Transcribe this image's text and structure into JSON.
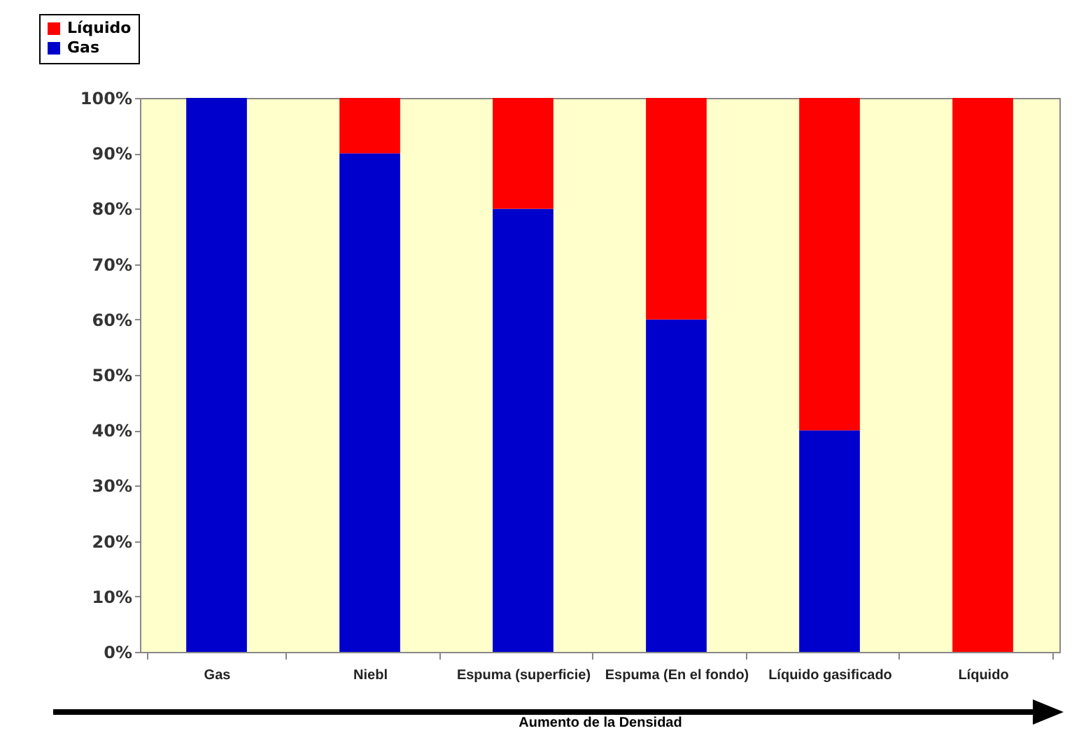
{
  "chart_data": {
    "type": "bar",
    "stacked": true,
    "xlabel": "Aumento de la Densidad",
    "categories": [
      "Gas",
      "Niebl",
      "Espuma (superficie)",
      "Espuma (En el fondo)",
      "Líquido gasificado",
      "Líquido"
    ],
    "series": [
      {
        "name": "Gas",
        "color": "#0000cc",
        "values": [
          100,
          90,
          80,
          60,
          40,
          0
        ]
      },
      {
        "name": "Líquido",
        "color": "#ff0000",
        "values": [
          0,
          10,
          20,
          40,
          60,
          100
        ]
      }
    ],
    "ylim": [
      0,
      100
    ],
    "yticks": [
      {
        "value": 0,
        "label": "0%"
      },
      {
        "value": 10,
        "label": "10%"
      },
      {
        "value": 20,
        "label": "20%"
      },
      {
        "value": 30,
        "label": "30%"
      },
      {
        "value": 40,
        "label": "40%"
      },
      {
        "value": 50,
        "label": "50%"
      },
      {
        "value": 60,
        "label": "60%"
      },
      {
        "value": 70,
        "label": "70%"
      },
      {
        "value": 80,
        "label": "80%"
      },
      {
        "value": 90,
        "label": "90%"
      },
      {
        "value": 100,
        "label": "100%"
      }
    ],
    "legend": "top left",
    "grid": false
  }
}
